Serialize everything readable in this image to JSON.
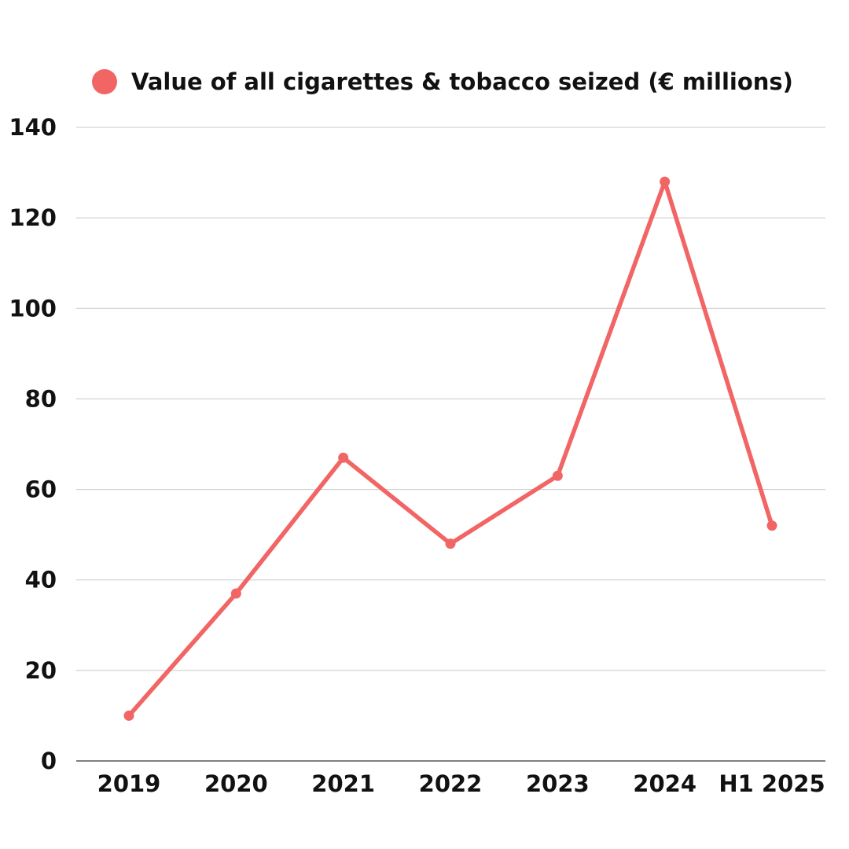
{
  "chart_data": {
    "type": "line",
    "title": "",
    "xlabel": "",
    "ylabel": "",
    "categories": [
      "2019",
      "2020",
      "2021",
      "2022",
      "2023",
      "2024",
      "H1 2025"
    ],
    "series": [
      {
        "name": "Value of all cigarettes & tobacco seized (€ millions)",
        "color": "#f26565",
        "values": [
          10,
          37,
          67,
          48,
          63,
          128,
          52
        ]
      }
    ],
    "ylim": [
      0,
      140
    ],
    "yticks": [
      "0",
      "20",
      "40",
      "60",
      "80",
      "100",
      "120",
      "140"
    ],
    "grid": true,
    "legend_position": "top"
  }
}
